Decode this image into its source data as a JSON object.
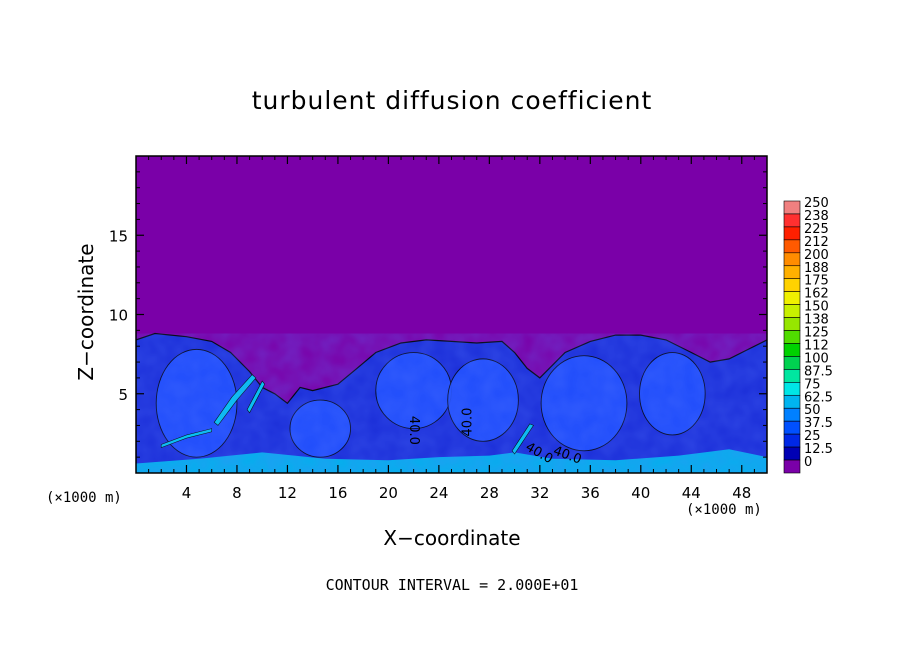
{
  "chart_data": {
    "type": "heatmap",
    "title": "turbulent diffusion coefficient",
    "xlabel": "X−coordinate",
    "ylabel": "Z−coordinate",
    "x_unit_left": "(×1000 m)",
    "x_unit_right": "(×1000 m)",
    "footnote": "CONTOUR INTERVAL = 2.000E+01",
    "xlim": [
      0,
      50
    ],
    "ylim": [
      0,
      20
    ],
    "x_ticks": [
      4,
      8,
      12,
      16,
      20,
      24,
      28,
      32,
      36,
      40,
      44,
      48
    ],
    "y_ticks": [
      5,
      10,
      15
    ],
    "colorbar": {
      "labels": [
        "250",
        "238",
        "225",
        "212",
        "200",
        "188",
        "175",
        "162",
        "150",
        "138",
        "125",
        "112",
        "100",
        "87.5",
        "75",
        "62.5",
        "50",
        "37.5",
        "25",
        "12.5",
        "0"
      ],
      "colors": [
        "#f08080",
        "#ff3030",
        "#ff2000",
        "#ff5a00",
        "#ff8c00",
        "#ffb000",
        "#ffd200",
        "#f0f000",
        "#c8f000",
        "#96e600",
        "#50dc00",
        "#00d200",
        "#00d250",
        "#00e6a0",
        "#00e6e6",
        "#00b4f0",
        "#0080ff",
        "#0050ff",
        "#0028e6",
        "#0000b4",
        "#7a00a8"
      ]
    },
    "background_value": 0,
    "contour_labels": [
      "40.0",
      "40.0",
      "40.0",
      "40.0"
    ],
    "colors": {
      "background": "#7a00a8",
      "turbulent_low": "#1a2dd8",
      "turbulent_mid": "#2050ff",
      "turbulent_high": "#00c8f0"
    }
  }
}
